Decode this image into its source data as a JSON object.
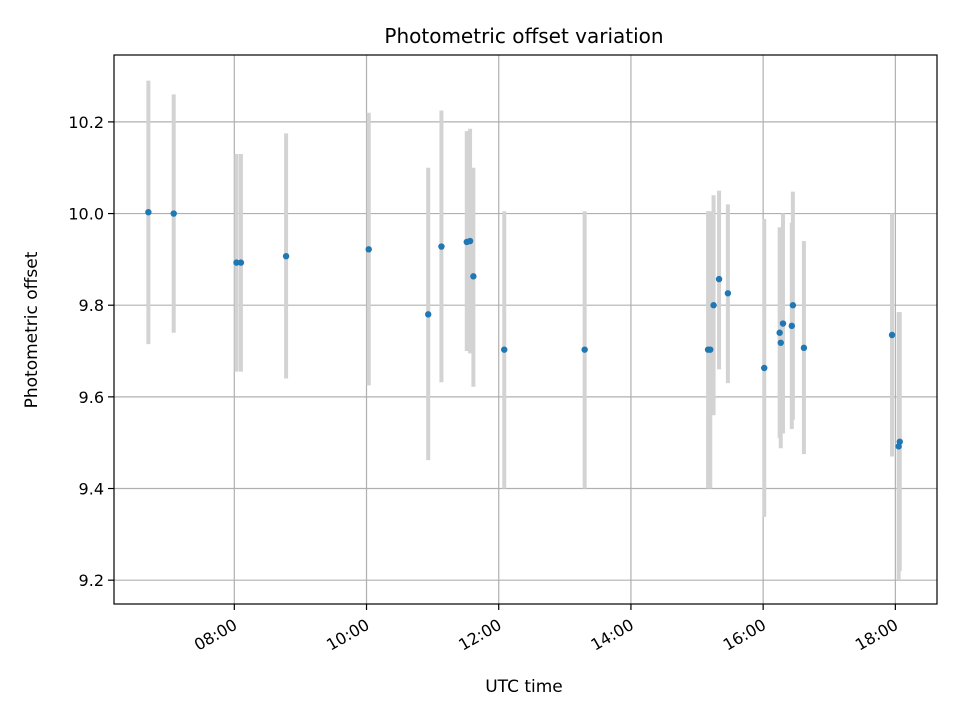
{
  "chart_data": {
    "type": "scatter",
    "title": "Photometric offset variation",
    "xlabel": "UTC time",
    "ylabel": "Photometric offset",
    "x_tick_labels": [
      "08:00",
      "10:00",
      "12:00",
      "14:00",
      "16:00",
      "18:00"
    ],
    "x_tick_hours": [
      8,
      10,
      12,
      14,
      16,
      18
    ],
    "y_tick_labels": [
      "9.2",
      "9.4",
      "9.6",
      "9.8",
      "10.0",
      "10.2"
    ],
    "y_ticks": [
      9.2,
      9.4,
      9.6,
      9.8,
      10.0,
      10.2
    ],
    "xlim_hours": [
      6.18,
      18.63
    ],
    "ylim": [
      9.148,
      10.346
    ],
    "grid": true,
    "marker_color": "#1f77b4",
    "errorbar_color": "#d3d3d3",
    "points": [
      {
        "time": "06:42",
        "y": 10.003,
        "low": 9.715,
        "high": 10.29
      },
      {
        "time": "07:05",
        "y": 10.0,
        "low": 9.74,
        "high": 10.26
      },
      {
        "time": "08:02",
        "y": 9.893,
        "low": 9.655,
        "high": 10.13
      },
      {
        "time": "08:06",
        "y": 9.893,
        "low": 9.655,
        "high": 10.13
      },
      {
        "time": "08:47",
        "y": 9.907,
        "low": 9.64,
        "high": 10.175
      },
      {
        "time": "10:02",
        "y": 9.922,
        "low": 9.625,
        "high": 10.22
      },
      {
        "time": "10:56",
        "y": 9.78,
        "low": 9.462,
        "high": 10.1
      },
      {
        "time": "11:08",
        "y": 9.928,
        "low": 9.632,
        "high": 10.225
      },
      {
        "time": "11:31",
        "y": 9.938,
        "low": 9.7,
        "high": 10.18
      },
      {
        "time": "11:34",
        "y": 9.94,
        "low": 9.695,
        "high": 10.185
      },
      {
        "time": "11:37",
        "y": 9.863,
        "low": 9.622,
        "high": 10.1
      },
      {
        "time": "12:05",
        "y": 9.703,
        "low": 9.4,
        "high": 10.005
      },
      {
        "time": "13:18",
        "y": 9.703,
        "low": 9.4,
        "high": 10.005
      },
      {
        "time": "15:10",
        "y": 9.703,
        "low": 9.4,
        "high": 10.005
      },
      {
        "time": "15:12",
        "y": 9.703,
        "low": 9.4,
        "high": 10.005
      },
      {
        "time": "15:15",
        "y": 9.8,
        "low": 9.56,
        "high": 10.04
      },
      {
        "time": "15:20",
        "y": 9.857,
        "low": 9.66,
        "high": 10.05
      },
      {
        "time": "15:28",
        "y": 9.826,
        "low": 9.63,
        "high": 10.02
      },
      {
        "time": "16:01",
        "y": 9.663,
        "low": 9.338,
        "high": 9.988
      },
      {
        "time": "16:15",
        "y": 9.74,
        "low": 9.51,
        "high": 9.97
      },
      {
        "time": "16:16",
        "y": 9.718,
        "low": 9.488,
        "high": 9.948
      },
      {
        "time": "16:18",
        "y": 9.76,
        "low": 9.52,
        "high": 10.0
      },
      {
        "time": "16:26",
        "y": 9.755,
        "low": 9.53,
        "high": 9.98
      },
      {
        "time": "16:27",
        "y": 9.8,
        "low": 9.55,
        "high": 10.048
      },
      {
        "time": "16:37",
        "y": 9.707,
        "low": 9.475,
        "high": 9.94
      },
      {
        "time": "17:57",
        "y": 9.735,
        "low": 9.47,
        "high": 10.0
      },
      {
        "time": "18:03",
        "y": 9.492,
        "low": 9.2,
        "high": 9.785
      },
      {
        "time": "18:04",
        "y": 9.502,
        "low": 9.22,
        "high": 9.785
      }
    ]
  }
}
